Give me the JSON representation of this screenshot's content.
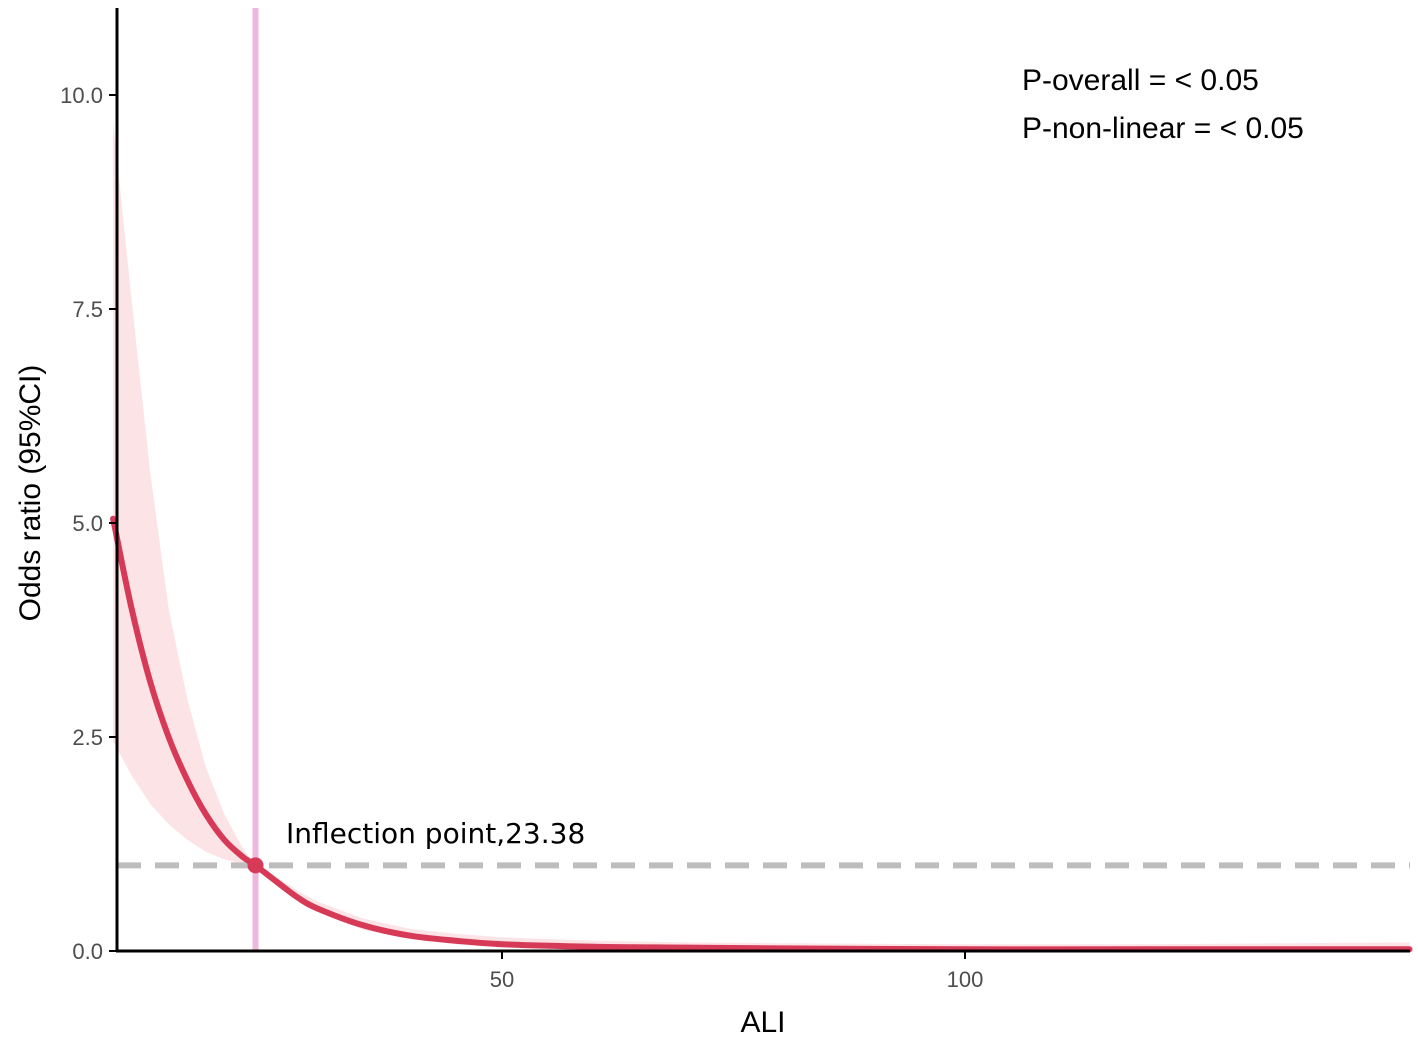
{
  "chart_data": {
    "type": "line",
    "title": "",
    "xlabel": "ALI",
    "ylabel": "Odds ratio (95%CI)",
    "xlim": [
      8,
      148
    ],
    "ylim": [
      0,
      11
    ],
    "x_ticks": [
      50,
      100
    ],
    "x_tick_labels": [
      "50",
      "100"
    ],
    "y_ticks": [
      0,
      2.5,
      5,
      7.5,
      10
    ],
    "y_tick_labels": [
      "0.0",
      "2.5",
      "5.0",
      "7.5",
      "10.0"
    ],
    "grid": false,
    "reference_line_y": 1,
    "inflection_x": 23.38,
    "inflection_y": 1,
    "series": [
      {
        "x": [
          8,
          10,
          12,
          14,
          16,
          18,
          20,
          22,
          23.38,
          26,
          28,
          30,
          35,
          40,
          45,
          50,
          60,
          70,
          80,
          100,
          120,
          148
        ],
        "y": [
          5.05,
          4.0,
          3.15,
          2.5,
          2.0,
          1.6,
          1.3,
          1.1,
          1.0,
          0.78,
          0.62,
          0.5,
          0.3,
          0.18,
          0.12,
          0.08,
          0.05,
          0.04,
          0.03,
          0.02,
          0.02,
          0.02
        ],
        "lower": [
          2.45,
          2.05,
          1.72,
          1.48,
          1.3,
          1.16,
          1.07,
          1.02,
          1.0,
          0.74,
          0.58,
          0.46,
          0.25,
          0.14,
          0.08,
          0.05,
          0.02,
          0.01,
          0.005,
          0.0,
          0.0,
          0.0
        ],
        "upper": [
          9.7,
          7.6,
          5.6,
          4.0,
          2.95,
          2.15,
          1.6,
          1.2,
          1.0,
          0.84,
          0.7,
          0.58,
          0.38,
          0.26,
          0.2,
          0.16,
          0.12,
          0.1,
          0.09,
          0.08,
          0.08,
          0.1
        ]
      }
    ],
    "annotations": {
      "inflection_label": "Inflection point,23.38",
      "p_overall": "P-overall = < 0.05",
      "p_nonlinear": "P-non-linear = < 0.05"
    },
    "colors": {
      "line": "#d63a57",
      "band": "#fbe3e6",
      "vline": "#f0b7de",
      "refline": "#bdbdbd",
      "axis": "#000000"
    }
  }
}
